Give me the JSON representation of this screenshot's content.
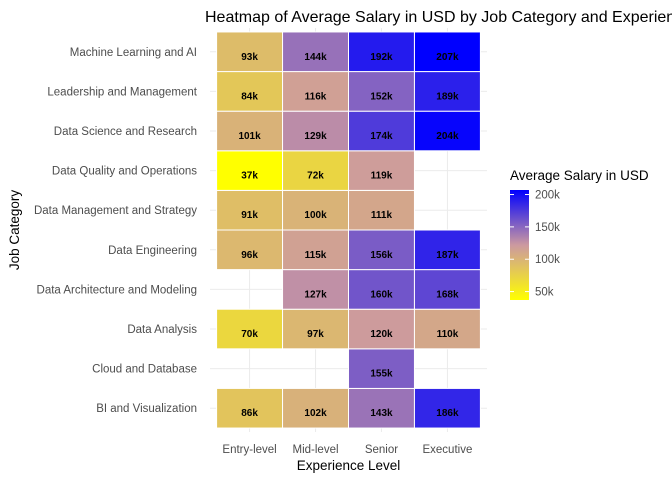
{
  "chart_data": {
    "type": "heatmap",
    "title": "Heatmap of Average Salary in USD by Job Category and Experience Level",
    "xlabel": "Experience Level",
    "ylabel": "Job Category",
    "x_categories": [
      "Entry-level",
      "Mid-level",
      "Senior",
      "Executive"
    ],
    "y_categories": [
      "BI and Visualization",
      "Cloud and Database",
      "Data Analysis",
      "Data Architecture and Modeling",
      "Data Engineering",
      "Data Management and Strategy",
      "Data Quality and Operations",
      "Data Science and Research",
      "Leadership and Management",
      "Machine Learning and AI"
    ],
    "cells": [
      {
        "y": "BI and Visualization",
        "x": "Entry-level",
        "value": 86,
        "label": "86k"
      },
      {
        "y": "BI and Visualization",
        "x": "Mid-level",
        "value": 102,
        "label": "102k"
      },
      {
        "y": "BI and Visualization",
        "x": "Senior",
        "value": 143,
        "label": "143k"
      },
      {
        "y": "BI and Visualization",
        "x": "Executive",
        "value": 186,
        "label": "186k"
      },
      {
        "y": "Cloud and Database",
        "x": "Senior",
        "value": 155,
        "label": "155k"
      },
      {
        "y": "Data Analysis",
        "x": "Entry-level",
        "value": 70,
        "label": "70k"
      },
      {
        "y": "Data Analysis",
        "x": "Mid-level",
        "value": 97,
        "label": "97k"
      },
      {
        "y": "Data Analysis",
        "x": "Senior",
        "value": 120,
        "label": "120k"
      },
      {
        "y": "Data Analysis",
        "x": "Executive",
        "value": 110,
        "label": "110k"
      },
      {
        "y": "Data Architecture and Modeling",
        "x": "Mid-level",
        "value": 127,
        "label": "127k"
      },
      {
        "y": "Data Architecture and Modeling",
        "x": "Senior",
        "value": 160,
        "label": "160k"
      },
      {
        "y": "Data Architecture and Modeling",
        "x": "Executive",
        "value": 168,
        "label": "168k"
      },
      {
        "y": "Data Engineering",
        "x": "Entry-level",
        "value": 96,
        "label": "96k"
      },
      {
        "y": "Data Engineering",
        "x": "Mid-level",
        "value": 115,
        "label": "115k"
      },
      {
        "y": "Data Engineering",
        "x": "Senior",
        "value": 156,
        "label": "156k"
      },
      {
        "y": "Data Engineering",
        "x": "Executive",
        "value": 187,
        "label": "187k"
      },
      {
        "y": "Data Management and Strategy",
        "x": "Entry-level",
        "value": 91,
        "label": "91k"
      },
      {
        "y": "Data Management and Strategy",
        "x": "Mid-level",
        "value": 100,
        "label": "100k"
      },
      {
        "y": "Data Management and Strategy",
        "x": "Senior",
        "value": 111,
        "label": "111k"
      },
      {
        "y": "Data Quality and Operations",
        "x": "Entry-level",
        "value": 37,
        "label": "37k"
      },
      {
        "y": "Data Quality and Operations",
        "x": "Mid-level",
        "value": 72,
        "label": "72k"
      },
      {
        "y": "Data Quality and Operations",
        "x": "Senior",
        "value": 119,
        "label": "119k"
      },
      {
        "y": "Data Science and Research",
        "x": "Entry-level",
        "value": 101,
        "label": "101k"
      },
      {
        "y": "Data Science and Research",
        "x": "Mid-level",
        "value": 129,
        "label": "129k"
      },
      {
        "y": "Data Science and Research",
        "x": "Senior",
        "value": 174,
        "label": "174k"
      },
      {
        "y": "Data Science and Research",
        "x": "Executive",
        "value": 204,
        "label": "204k"
      },
      {
        "y": "Leadership and Management",
        "x": "Entry-level",
        "value": 84,
        "label": "84k"
      },
      {
        "y": "Leadership and Management",
        "x": "Mid-level",
        "value": 116,
        "label": "116k"
      },
      {
        "y": "Leadership and Management",
        "x": "Senior",
        "value": 152,
        "label": "152k"
      },
      {
        "y": "Leadership and Management",
        "x": "Executive",
        "value": 189,
        "label": "189k"
      },
      {
        "y": "Machine Learning and AI",
        "x": "Entry-level",
        "value": 93,
        "label": "93k"
      },
      {
        "y": "Machine Learning and AI",
        "x": "Mid-level",
        "value": 144,
        "label": "144k"
      },
      {
        "y": "Machine Learning and AI",
        "x": "Senior",
        "value": 192,
        "label": "192k"
      },
      {
        "y": "Machine Learning and AI",
        "x": "Executive",
        "value": 207,
        "label": "207k"
      }
    ],
    "legend": {
      "title": "Average Salary in USD",
      "placement": "right",
      "ticks": [
        {
          "value": 50,
          "label": "50k"
        },
        {
          "value": 100,
          "label": "100k"
        },
        {
          "value": 150,
          "label": "150k"
        },
        {
          "value": 200,
          "label": "200k"
        }
      ]
    },
    "color_scale": {
      "low": "#ffff00",
      "mid": "#cc99a0",
      "high": "#0000ff",
      "domain": [
        37,
        207
      ]
    },
    "grid": true
  }
}
